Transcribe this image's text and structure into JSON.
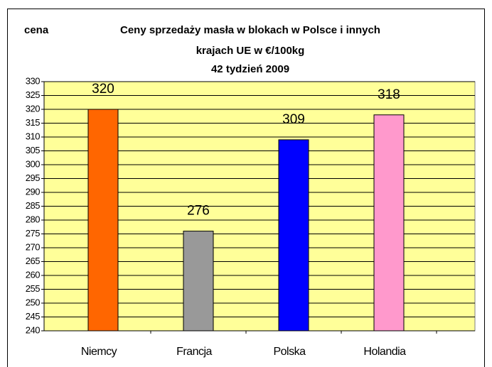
{
  "chart_data": {
    "type": "bar",
    "y_label": "cena",
    "title": [
      "Ceny sprzedaży masła w blokach w Polsce i  innych",
      "krajach UE w €/100kg",
      "42 tydzień 2009"
    ],
    "categories": [
      "Niemcy",
      "Francja",
      "Polska",
      "Holandia"
    ],
    "values": [
      320,
      276,
      309,
      318
    ],
    "colors": [
      "#ff6600",
      "#999999",
      "#0000ff",
      "#ff99cc"
    ],
    "ylim": [
      240,
      330
    ],
    "yticks": [
      240,
      245,
      250,
      255,
      260,
      265,
      270,
      275,
      280,
      285,
      290,
      295,
      300,
      305,
      310,
      315,
      320,
      325,
      330
    ],
    "grid": true,
    "plot_background": "#ffff99"
  }
}
